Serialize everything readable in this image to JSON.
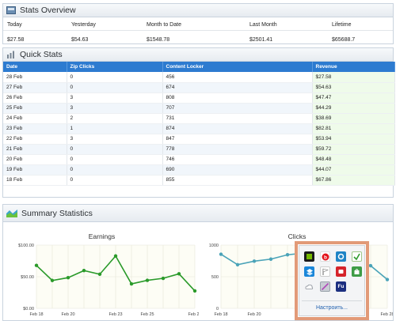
{
  "overview": {
    "title": "Stats Overview",
    "columns": [
      "Today",
      "Yesterday",
      "Month to Date",
      "Last Month",
      "Lifetime"
    ],
    "values": [
      "$27.58",
      "$54.63",
      "$1548.78",
      "$2501.41",
      "$65688.7"
    ]
  },
  "quick": {
    "title": "Quick Stats",
    "headers": [
      "Date",
      "Zip Clicks",
      "Content Locker",
      "Revenue"
    ],
    "rows": [
      [
        "28 Feb",
        "0",
        "456",
        "$27.58"
      ],
      [
        "27 Feb",
        "0",
        "674",
        "$54.63"
      ],
      [
        "26 Feb",
        "3",
        "808",
        "$47.47"
      ],
      [
        "25 Feb",
        "3",
        "707",
        "$44.29"
      ],
      [
        "24 Feb",
        "2",
        "731",
        "$38.69"
      ],
      [
        "23 Feb",
        "1",
        "874",
        "$82.81"
      ],
      [
        "22 Feb",
        "3",
        "847",
        "$53.94"
      ],
      [
        "21 Feb",
        "0",
        "778",
        "$59.72"
      ],
      [
        "20 Feb",
        "0",
        "746",
        "$48.48"
      ],
      [
        "19 Feb",
        "0",
        "690",
        "$44.07"
      ],
      [
        "18 Feb",
        "0",
        "855",
        "$67.86"
      ]
    ]
  },
  "summary": {
    "title": "Summary Statistics"
  },
  "chart_data": [
    {
      "type": "line",
      "title": "Earnings",
      "x": [
        "Feb 18",
        "Feb 19",
        "Feb 20",
        "Feb 21",
        "Feb 22",
        "Feb 23",
        "Feb 24",
        "Feb 25",
        "Feb 26",
        "Feb 27",
        "Feb 28"
      ],
      "xticks": [
        "Feb 18",
        "Feb 20",
        "Feb 23",
        "Feb 25",
        "Feb 28"
      ],
      "yticks": [
        "$100.00",
        "$50.00",
        "$0.00"
      ],
      "ylim": [
        0,
        100
      ],
      "series": [
        {
          "values": [
            67.86,
            44.07,
            48.48,
            59.72,
            53.94,
            82.81,
            38.69,
            44.29,
            47.47,
            54.63,
            27.58
          ],
          "color": "#2a9a2a"
        }
      ],
      "grid": true
    },
    {
      "type": "line",
      "title": "Clicks",
      "x": [
        "Feb 18",
        "Feb 19",
        "Feb 20",
        "Feb 21",
        "Feb 22",
        "Feb 23",
        "Feb 24",
        "Feb 25",
        "Feb 26",
        "Feb 27",
        "Feb 28"
      ],
      "xticks": [
        "Feb 18",
        "Feb 20",
        "Feb 23",
        "Feb 25",
        "Feb 28"
      ],
      "yticks": [
        "1000",
        "500",
        "0"
      ],
      "ylim": [
        0,
        1000
      ],
      "series": [
        {
          "values": [
            855,
            690,
            746,
            778,
            847,
            874,
            731,
            707,
            808,
            674,
            456
          ],
          "color": "#4aa3b8"
        }
      ],
      "grid": true
    }
  ],
  "tray": {
    "link": "Настроить...",
    "icons": [
      "nvidia-icon",
      "beats-icon",
      "app-blue-icon",
      "check-green-icon",
      "dropbox-icon",
      "flag-icon",
      "red-app-icon",
      "green-bag-icon",
      "cloud-icon",
      "pen-icon",
      "fu-icon"
    ]
  }
}
